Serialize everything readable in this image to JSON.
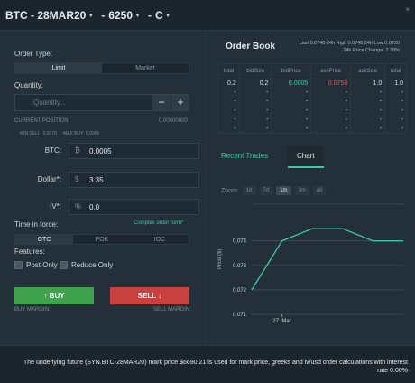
{
  "header": {
    "instrument": "BTC - 28MAR20",
    "strike": "6250",
    "type": "C",
    "close": "×"
  },
  "order_form": {
    "order_type_label": "Order Type:",
    "order_types": [
      "Limit",
      "Market"
    ],
    "quantity_label": "Quantity:",
    "quantity_placeholder": "Quantity...",
    "minus": "−",
    "plus": "+",
    "current_position_label": "CURRENT POSITION:",
    "current_position_value": "0.00000000",
    "min_sell": "MIN SELL: 0.0370",
    "max_buy": "MAX BUY: 0.0995",
    "btc_label": "BTC:",
    "btc_prefix": "₿",
    "btc_value": "0.0005",
    "dollar_label": "Dollar*:",
    "dollar_prefix": "$",
    "dollar_value": "3.35",
    "iv_label": "IV*:",
    "iv_prefix": "%",
    "iv_value": "0.0",
    "tif_label": "Time in force:",
    "complex_link": "Complex order form*",
    "tif_options": [
      "GTC",
      "FOK",
      "IOC"
    ],
    "features_label": "Features:",
    "post_only": "Post Only",
    "reduce_only": "Reduce Only",
    "buy_label": "↑ BUY",
    "sell_label": "SELL ↓",
    "buy_margin": "BUY MARGIN:",
    "sell_margin": "SELL MARGIN:"
  },
  "order_book": {
    "title": "Order Book",
    "stats_line1": "Last 0.0740 24h High 0.0745 24h Low 0.0720",
    "stats_line2": "24h Price Change: 2.78%",
    "columns": [
      "total",
      "bidSize",
      "bidPrice",
      "askPrice",
      "askSize",
      "total"
    ],
    "rows": [
      [
        "0.2",
        "0.2",
        "0.0005",
        "0.0750",
        "1.0",
        "1.0"
      ],
      [
        "-",
        "-",
        "-",
        "-",
        "-",
        "-"
      ],
      [
        "-",
        "-",
        "-",
        "-",
        "-",
        "-"
      ],
      [
        "-",
        "-",
        "-",
        "-",
        "-",
        "-"
      ],
      [
        "-",
        "-",
        "-",
        "-",
        "-",
        "-"
      ],
      [
        "-",
        "-",
        "-",
        "-",
        "-",
        "-"
      ]
    ]
  },
  "tabs": [
    "Recent Trades",
    "Chart"
  ],
  "zoom": {
    "label": "Zoom:",
    "options": [
      "1d",
      "7d",
      "1m",
      "3m",
      "all"
    ],
    "selected": "1m"
  },
  "chart_data": {
    "type": "line",
    "title": "",
    "xlabel": "",
    "ylabel": "Price ($)",
    "x_tick_label": "27. Mar",
    "yticks": [
      0.071,
      0.072,
      0.073,
      0.074
    ],
    "ylim": [
      0.071,
      0.0755
    ],
    "series": [
      {
        "x": [
          0,
          1,
          2,
          3,
          4,
          5
        ],
        "values": [
          0.072,
          0.074,
          0.0745,
          0.0745,
          0.074,
          0.074
        ]
      }
    ],
    "line_color": "#3cc9a7",
    "grid": true
  },
  "footer": {
    "text": "The underlying future (SYN.BTC-28MAR20) mark price $6690.21 is used for mark price, greeks and iv/usd order calculations with interest rate 0.00%"
  }
}
